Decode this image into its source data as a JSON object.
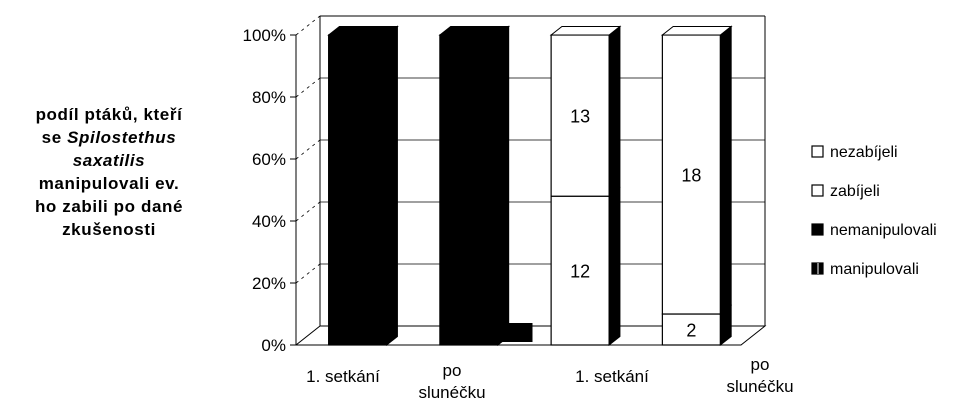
{
  "ylabel": {
    "lines": [
      [
        "podíl ptáků, kteří"
      ],
      [
        "se ",
        "Spilostethus"
      ],
      [
        "saxatilis"
      ],
      [
        "manipulovali ev."
      ],
      [
        "ho zabili po dané"
      ],
      [
        "zkušenosti"
      ]
    ]
  },
  "legend": [
    {
      "label": "nezabíjeli",
      "swatch": "white"
    },
    {
      "label": "zabíjeli",
      "swatch": "white"
    },
    {
      "label": "nemanipulovali",
      "swatch": "black"
    },
    {
      "label": "manipulovali",
      "swatch": "black-edge"
    }
  ],
  "chart_data": {
    "type": "bar",
    "stacked": true,
    "percent": true,
    "three_d": true,
    "categories": [
      [
        "1. setkání"
      ],
      [
        "po",
        "slunéčku"
      ],
      [
        "1. setkání"
      ],
      [
        "po",
        "slunéčku"
      ]
    ],
    "yticks": [
      "0%",
      "20%",
      "40%",
      "60%",
      "80%",
      "100%"
    ],
    "ylim": [
      0,
      100
    ],
    "series": [
      {
        "name": "nemanipulovali",
        "color": "#000000",
        "values": [
          100,
          100,
          0,
          0
        ]
      },
      {
        "name": "zabíjeli",
        "color": "#ffffff",
        "values": [
          0,
          0,
          48,
          10
        ],
        "labels": [
          "",
          "",
          "12",
          "2"
        ]
      },
      {
        "name": "nezabíjeli",
        "color": "#ffffff",
        "values": [
          0,
          0,
          52,
          90
        ],
        "labels": [
          "",
          "",
          "13",
          "18"
        ]
      }
    ],
    "grid": true,
    "legend_position": "right"
  }
}
